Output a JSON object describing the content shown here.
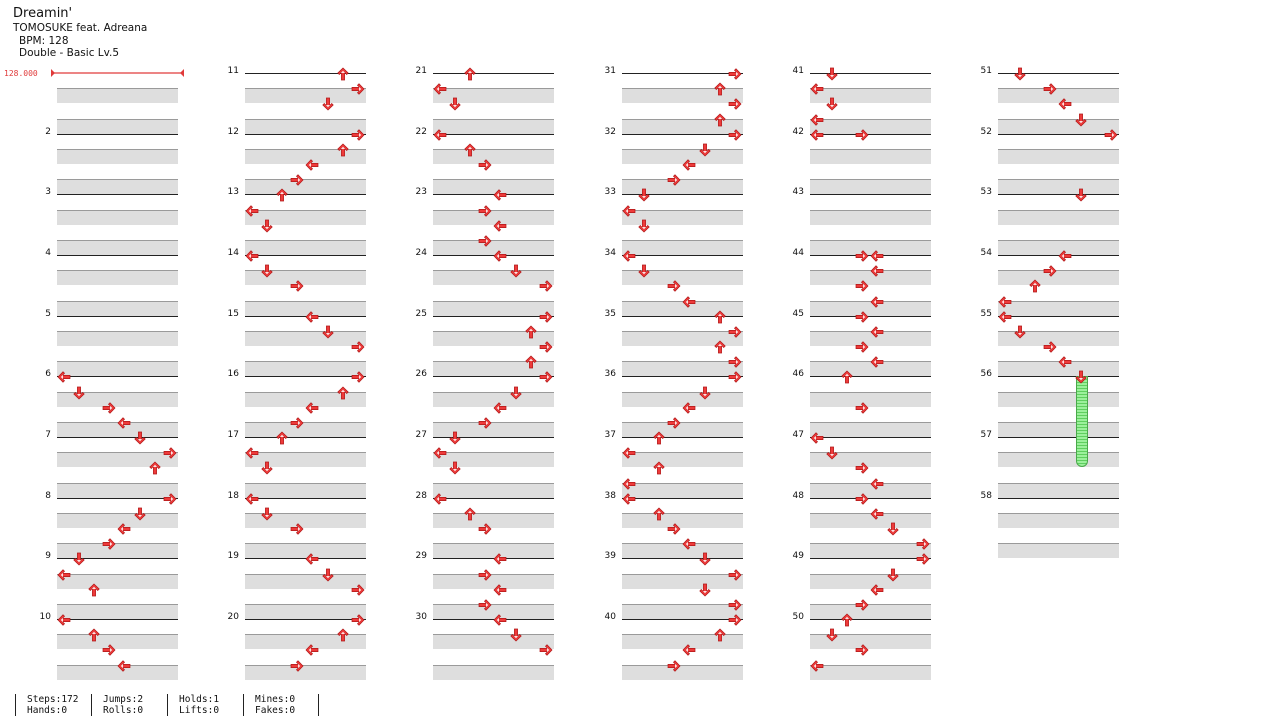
{
  "song": {
    "title": "Dreamin'",
    "artist": "TOMOSUKE feat. Adreana",
    "bpm_label": "BPM: 128",
    "chart_label": "Double - Basic  Lv.5"
  },
  "bpm_marker": "128.000",
  "measure_count": 58,
  "rows_per_measure": 4,
  "notes": [
    {
      "m": 6,
      "r": 0,
      "c": 0,
      "d": "L"
    },
    {
      "m": 6,
      "r": 1,
      "c": 1,
      "d": "D"
    },
    {
      "m": 6,
      "r": 2,
      "c": 3,
      "d": "R"
    },
    {
      "m": 6,
      "r": 3,
      "c": 4,
      "d": "L"
    },
    {
      "m": 7,
      "r": 0,
      "c": 5,
      "d": "D"
    },
    {
      "m": 7,
      "r": 1,
      "c": 7,
      "d": "R"
    },
    {
      "m": 7,
      "r": 2,
      "c": 6,
      "d": "U"
    },
    {
      "m": 8,
      "r": 0,
      "c": 7,
      "d": "R"
    },
    {
      "m": 8,
      "r": 1,
      "c": 5,
      "d": "D"
    },
    {
      "m": 8,
      "r": 2,
      "c": 4,
      "d": "L"
    },
    {
      "m": 8,
      "r": 3,
      "c": 3,
      "d": "R"
    },
    {
      "m": 9,
      "r": 0,
      "c": 1,
      "d": "D"
    },
    {
      "m": 9,
      "r": 1,
      "c": 0,
      "d": "L"
    },
    {
      "m": 9,
      "r": 2,
      "c": 2,
      "d": "U"
    },
    {
      "m": 10,
      "r": 0,
      "c": 0,
      "d": "L"
    },
    {
      "m": 10,
      "r": 1,
      "c": 2,
      "d": "U"
    },
    {
      "m": 10,
      "r": 2,
      "c": 3,
      "d": "R"
    },
    {
      "m": 10,
      "r": 3,
      "c": 4,
      "d": "L"
    },
    {
      "m": 11,
      "r": 0,
      "c": 6,
      "d": "U"
    },
    {
      "m": 11,
      "r": 1,
      "c": 7,
      "d": "R"
    },
    {
      "m": 11,
      "r": 2,
      "c": 5,
      "d": "D"
    },
    {
      "m": 12,
      "r": 0,
      "c": 7,
      "d": "R"
    },
    {
      "m": 12,
      "r": 1,
      "c": 6,
      "d": "U"
    },
    {
      "m": 12,
      "r": 2,
      "c": 4,
      "d": "L"
    },
    {
      "m": 12,
      "r": 3,
      "c": 3,
      "d": "R"
    },
    {
      "m": 13,
      "r": 0,
      "c": 2,
      "d": "U"
    },
    {
      "m": 13,
      "r": 1,
      "c": 0,
      "d": "L"
    },
    {
      "m": 13,
      "r": 2,
      "c": 1,
      "d": "D"
    },
    {
      "m": 14,
      "r": 0,
      "c": 0,
      "d": "L"
    },
    {
      "m": 14,
      "r": 1,
      "c": 1,
      "d": "D"
    },
    {
      "m": 14,
      "r": 2,
      "c": 3,
      "d": "R"
    },
    {
      "m": 15,
      "r": 0,
      "c": 4,
      "d": "L"
    },
    {
      "m": 15,
      "r": 1,
      "c": 5,
      "d": "D"
    },
    {
      "m": 15,
      "r": 2,
      "c": 7,
      "d": "R"
    },
    {
      "m": 16,
      "r": 0,
      "c": 7,
      "d": "R"
    },
    {
      "m": 16,
      "r": 1,
      "c": 6,
      "d": "U"
    },
    {
      "m": 16,
      "r": 2,
      "c": 4,
      "d": "L"
    },
    {
      "m": 16,
      "r": 3,
      "c": 3,
      "d": "R"
    },
    {
      "m": 17,
      "r": 0,
      "c": 2,
      "d": "U"
    },
    {
      "m": 17,
      "r": 1,
      "c": 0,
      "d": "L"
    },
    {
      "m": 17,
      "r": 2,
      "c": 1,
      "d": "D"
    },
    {
      "m": 18,
      "r": 0,
      "c": 0,
      "d": "L"
    },
    {
      "m": 18,
      "r": 1,
      "c": 1,
      "d": "D"
    },
    {
      "m": 18,
      "r": 2,
      "c": 3,
      "d": "R"
    },
    {
      "m": 19,
      "r": 0,
      "c": 4,
      "d": "L"
    },
    {
      "m": 19,
      "r": 1,
      "c": 5,
      "d": "D"
    },
    {
      "m": 19,
      "r": 2,
      "c": 7,
      "d": "R"
    },
    {
      "m": 20,
      "r": 0,
      "c": 7,
      "d": "R"
    },
    {
      "m": 20,
      "r": 1,
      "c": 6,
      "d": "U"
    },
    {
      "m": 20,
      "r": 2,
      "c": 4,
      "d": "L"
    },
    {
      "m": 20,
      "r": 3,
      "c": 3,
      "d": "R"
    },
    {
      "m": 21,
      "r": 0,
      "c": 2,
      "d": "U"
    },
    {
      "m": 21,
      "r": 1,
      "c": 0,
      "d": "L"
    },
    {
      "m": 21,
      "r": 2,
      "c": 1,
      "d": "D"
    },
    {
      "m": 22,
      "r": 0,
      "c": 0,
      "d": "L"
    },
    {
      "m": 22,
      "r": 1,
      "c": 2,
      "d": "U"
    },
    {
      "m": 22,
      "r": 2,
      "c": 3,
      "d": "R"
    },
    {
      "m": 23,
      "r": 0,
      "c": 4,
      "d": "L"
    },
    {
      "m": 23,
      "r": 1,
      "c": 3,
      "d": "R"
    },
    {
      "m": 23,
      "r": 2,
      "c": 4,
      "d": "L"
    },
    {
      "m": 23,
      "r": 3,
      "c": 3,
      "d": "R"
    },
    {
      "m": 24,
      "r": 0,
      "c": 4,
      "d": "L"
    },
    {
      "m": 24,
      "r": 1,
      "c": 5,
      "d": "D"
    },
    {
      "m": 24,
      "r": 2,
      "c": 7,
      "d": "R"
    },
    {
      "m": 25,
      "r": 0,
      "c": 7,
      "d": "R"
    },
    {
      "m": 25,
      "r": 1,
      "c": 6,
      "d": "U"
    },
    {
      "m": 25,
      "r": 2,
      "c": 7,
      "d": "R"
    },
    {
      "m": 25,
      "r": 3,
      "c": 6,
      "d": "U"
    },
    {
      "m": 26,
      "r": 0,
      "c": 7,
      "d": "R"
    },
    {
      "m": 26,
      "r": 1,
      "c": 5,
      "d": "D"
    },
    {
      "m": 26,
      "r": 2,
      "c": 4,
      "d": "L"
    },
    {
      "m": 26,
      "r": 3,
      "c": 3,
      "d": "R"
    },
    {
      "m": 27,
      "r": 0,
      "c": 1,
      "d": "D"
    },
    {
      "m": 27,
      "r": 1,
      "c": 0,
      "d": "L"
    },
    {
      "m": 27,
      "r": 2,
      "c": 1,
      "d": "D"
    },
    {
      "m": 28,
      "r": 0,
      "c": 0,
      "d": "L"
    },
    {
      "m": 28,
      "r": 1,
      "c": 2,
      "d": "U"
    },
    {
      "m": 28,
      "r": 2,
      "c": 3,
      "d": "R"
    },
    {
      "m": 29,
      "r": 0,
      "c": 4,
      "d": "L"
    },
    {
      "m": 29,
      "r": 1,
      "c": 3,
      "d": "R"
    },
    {
      "m": 29,
      "r": 2,
      "c": 4,
      "d": "L"
    },
    {
      "m": 29,
      "r": 3,
      "c": 3,
      "d": "R"
    },
    {
      "m": 30,
      "r": 0,
      "c": 4,
      "d": "L"
    },
    {
      "m": 30,
      "r": 1,
      "c": 5,
      "d": "D"
    },
    {
      "m": 30,
      "r": 2,
      "c": 7,
      "d": "R"
    },
    {
      "m": 31,
      "r": 0,
      "c": 7,
      "d": "R"
    },
    {
      "m": 31,
      "r": 1,
      "c": 6,
      "d": "U"
    },
    {
      "m": 31,
      "r": 2,
      "c": 7,
      "d": "R"
    },
    {
      "m": 31,
      "r": 3,
      "c": 6,
      "d": "U"
    },
    {
      "m": 32,
      "r": 0,
      "c": 7,
      "d": "R"
    },
    {
      "m": 32,
      "r": 1,
      "c": 5,
      "d": "D"
    },
    {
      "m": 32,
      "r": 2,
      "c": 4,
      "d": "L"
    },
    {
      "m": 32,
      "r": 3,
      "c": 3,
      "d": "R"
    },
    {
      "m": 33,
      "r": 0,
      "c": 1,
      "d": "D"
    },
    {
      "m": 33,
      "r": 1,
      "c": 0,
      "d": "L"
    },
    {
      "m": 33,
      "r": 2,
      "c": 1,
      "d": "D"
    },
    {
      "m": 34,
      "r": 0,
      "c": 0,
      "d": "L"
    },
    {
      "m": 34,
      "r": 1,
      "c": 1,
      "d": "D"
    },
    {
      "m": 34,
      "r": 2,
      "c": 3,
      "d": "R"
    },
    {
      "m": 34,
      "r": 3,
      "c": 4,
      "d": "L"
    },
    {
      "m": 35,
      "r": 0,
      "c": 6,
      "d": "U"
    },
    {
      "m": 35,
      "r": 1,
      "c": 7,
      "d": "R"
    },
    {
      "m": 35,
      "r": 2,
      "c": 6,
      "d": "U"
    },
    {
      "m": 35,
      "r": 3,
      "c": 7,
      "d": "R"
    },
    {
      "m": 36,
      "r": 0,
      "c": 7,
      "d": "R"
    },
    {
      "m": 36,
      "r": 1,
      "c": 5,
      "d": "D"
    },
    {
      "m": 36,
      "r": 2,
      "c": 4,
      "d": "L"
    },
    {
      "m": 36,
      "r": 3,
      "c": 3,
      "d": "R"
    },
    {
      "m": 37,
      "r": 0,
      "c": 2,
      "d": "U"
    },
    {
      "m": 37,
      "r": 1,
      "c": 0,
      "d": "L"
    },
    {
      "m": 37,
      "r": 2,
      "c": 2,
      "d": "U"
    },
    {
      "m": 37,
      "r": 3,
      "c": 0,
      "d": "L"
    },
    {
      "m": 38,
      "r": 0,
      "c": 0,
      "d": "L"
    },
    {
      "m": 38,
      "r": 1,
      "c": 2,
      "d": "U"
    },
    {
      "m": 38,
      "r": 2,
      "c": 3,
      "d": "R"
    },
    {
      "m": 38,
      "r": 3,
      "c": 4,
      "d": "L"
    },
    {
      "m": 39,
      "r": 0,
      "c": 5,
      "d": "D"
    },
    {
      "m": 39,
      "r": 1,
      "c": 7,
      "d": "R"
    },
    {
      "m": 39,
      "r": 2,
      "c": 5,
      "d": "D"
    },
    {
      "m": 39,
      "r": 3,
      "c": 7,
      "d": "R"
    },
    {
      "m": 40,
      "r": 0,
      "c": 7,
      "d": "R"
    },
    {
      "m": 40,
      "r": 1,
      "c": 6,
      "d": "U"
    },
    {
      "m": 40,
      "r": 2,
      "c": 4,
      "d": "L"
    },
    {
      "m": 40,
      "r": 3,
      "c": 3,
      "d": "R"
    },
    {
      "m": 41,
      "r": 0,
      "c": 1,
      "d": "D"
    },
    {
      "m": 41,
      "r": 1,
      "c": 0,
      "d": "L"
    },
    {
      "m": 41,
      "r": 2,
      "c": 1,
      "d": "D"
    },
    {
      "m": 41,
      "r": 3,
      "c": 0,
      "d": "L"
    },
    {
      "m": 42,
      "r": 0,
      "c": 0,
      "d": "L"
    },
    {
      "m": 42,
      "r": 0,
      "c": 3,
      "d": "R"
    },
    {
      "m": 44,
      "r": 0,
      "c": 3,
      "d": "R"
    },
    {
      "m": 44,
      "r": 0,
      "c": 4,
      "d": "L"
    },
    {
      "m": 44,
      "r": 1,
      "c": 4,
      "d": "L"
    },
    {
      "m": 44,
      "r": 2,
      "c": 3,
      "d": "R"
    },
    {
      "m": 44,
      "r": 3,
      "c": 4,
      "d": "L"
    },
    {
      "m": 45,
      "r": 0,
      "c": 3,
      "d": "R"
    },
    {
      "m": 45,
      "r": 1,
      "c": 4,
      "d": "L"
    },
    {
      "m": 45,
      "r": 2,
      "c": 3,
      "d": "R"
    },
    {
      "m": 45,
      "r": 3,
      "c": 4,
      "d": "L"
    },
    {
      "m": 46,
      "r": 0,
      "c": 2,
      "d": "U"
    },
    {
      "m": 46,
      "r": 2,
      "c": 3,
      "d": "R"
    },
    {
      "m": 47,
      "r": 0,
      "c": 0,
      "d": "L"
    },
    {
      "m": 47,
      "r": 1,
      "c": 1,
      "d": "D"
    },
    {
      "m": 47,
      "r": 2,
      "c": 3,
      "d": "R"
    },
    {
      "m": 47,
      "r": 3,
      "c": 4,
      "d": "L"
    },
    {
      "m": 48,
      "r": 0,
      "c": 3,
      "d": "R"
    },
    {
      "m": 48,
      "r": 1,
      "c": 4,
      "d": "L"
    },
    {
      "m": 48,
      "r": 2,
      "c": 5,
      "d": "D"
    },
    {
      "m": 48,
      "r": 3,
      "c": 7,
      "d": "R"
    },
    {
      "m": 49,
      "r": 0,
      "c": 7,
      "d": "R"
    },
    {
      "m": 49,
      "r": 1,
      "c": 5,
      "d": "D"
    },
    {
      "m": 49,
      "r": 2,
      "c": 4,
      "d": "L"
    },
    {
      "m": 49,
      "r": 3,
      "c": 3,
      "d": "R"
    },
    {
      "m": 50,
      "r": 0,
      "c": 2,
      "d": "U"
    },
    {
      "m": 50,
      "r": 1,
      "c": 1,
      "d": "D"
    },
    {
      "m": 50,
      "r": 2,
      "c": 3,
      "d": "R"
    },
    {
      "m": 50,
      "r": 3,
      "c": 0,
      "d": "L"
    },
    {
      "m": 51,
      "r": 0,
      "c": 1,
      "d": "D"
    },
    {
      "m": 51,
      "r": 1,
      "c": 3,
      "d": "R"
    },
    {
      "m": 51,
      "r": 2,
      "c": 4,
      "d": "L"
    },
    {
      "m": 51,
      "r": 3,
      "c": 5,
      "d": "D"
    },
    {
      "m": 52,
      "r": 0,
      "c": 7,
      "d": "R"
    },
    {
      "m": 53,
      "r": 0,
      "c": 5,
      "d": "D"
    },
    {
      "m": 54,
      "r": 0,
      "c": 4,
      "d": "L"
    },
    {
      "m": 54,
      "r": 1,
      "c": 3,
      "d": "R"
    },
    {
      "m": 54,
      "r": 2,
      "c": 2,
      "d": "U"
    },
    {
      "m": 54,
      "r": 3,
      "c": 0,
      "d": "L"
    },
    {
      "m": 55,
      "r": 0,
      "c": 0,
      "d": "L"
    },
    {
      "m": 55,
      "r": 1,
      "c": 1,
      "d": "D"
    },
    {
      "m": 55,
      "r": 2,
      "c": 3,
      "d": "R"
    },
    {
      "m": 55,
      "r": 3,
      "c": 4,
      "d": "L"
    },
    {
      "m": 56,
      "r": 0,
      "c": 5,
      "d": "D"
    }
  ],
  "holds": [
    {
      "m": 56,
      "r": 0,
      "c": 5,
      "beats": 6
    }
  ],
  "colors": {
    "arrow": "#ee3b3b",
    "arrow_outline": "#b01818",
    "hold": "#7be07b",
    "bpm": "#e03a3a"
  },
  "stats": {
    "steps": "Steps:172",
    "hands": "Hands:0",
    "jumps": "Jumps:2",
    "rolls": "Rolls:0",
    "holds": "Holds:1",
    "lifts": "Lifts:0",
    "mines": "Mines:0",
    "fakes": "Fakes:0"
  }
}
